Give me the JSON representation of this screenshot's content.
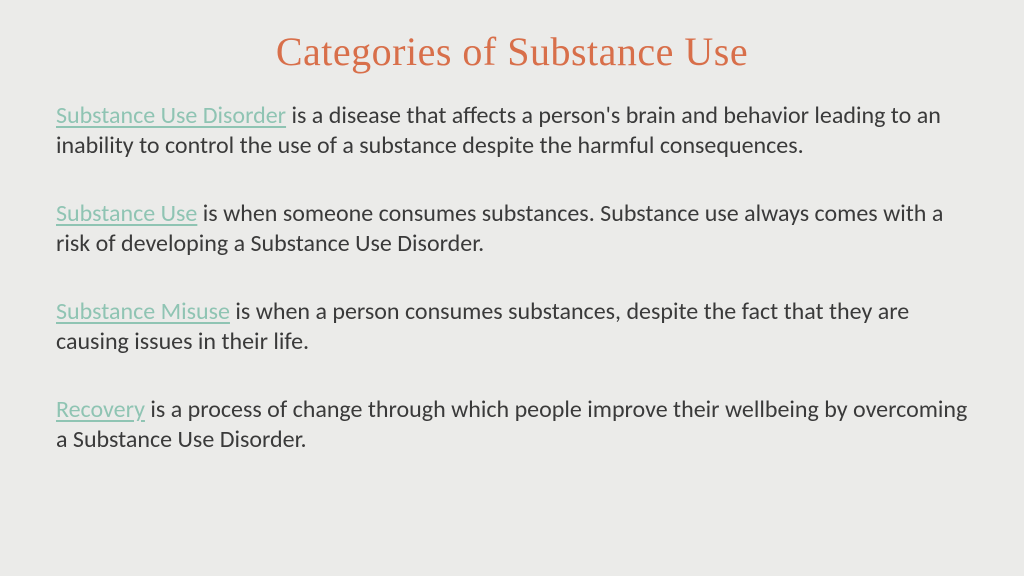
{
  "colors": {
    "background": "#ebebe9",
    "title": "#d86f4a",
    "term": "#8fc4b3",
    "body_text": "#3a3a3a"
  },
  "typography": {
    "title_font": "Georgia, serif",
    "title_size_pt": 30,
    "body_font": "Gill Sans, Calibri, sans-serif",
    "body_size_pt": 18,
    "line_height": 1.25
  },
  "slide": {
    "title": "Categories of Substance Use",
    "definitions": [
      {
        "term": "Substance Use Disorder",
        "body": " is a disease that affects a person's brain and behavior leading to an inability to control the use of a substance despite the harmful consequences."
      },
      {
        "term": "Substance Use",
        "body": " is when someone consumes substances. Substance use always comes with a risk of developing a Substance Use Disorder."
      },
      {
        "term": "Substance Misuse",
        "body": " is when a person consumes substances, despite the fact that they are causing issues in their life."
      },
      {
        "term": "Recovery",
        "body": " is a process of change through which people improve their wellbeing by overcoming a Substance Use Disorder."
      }
    ]
  }
}
